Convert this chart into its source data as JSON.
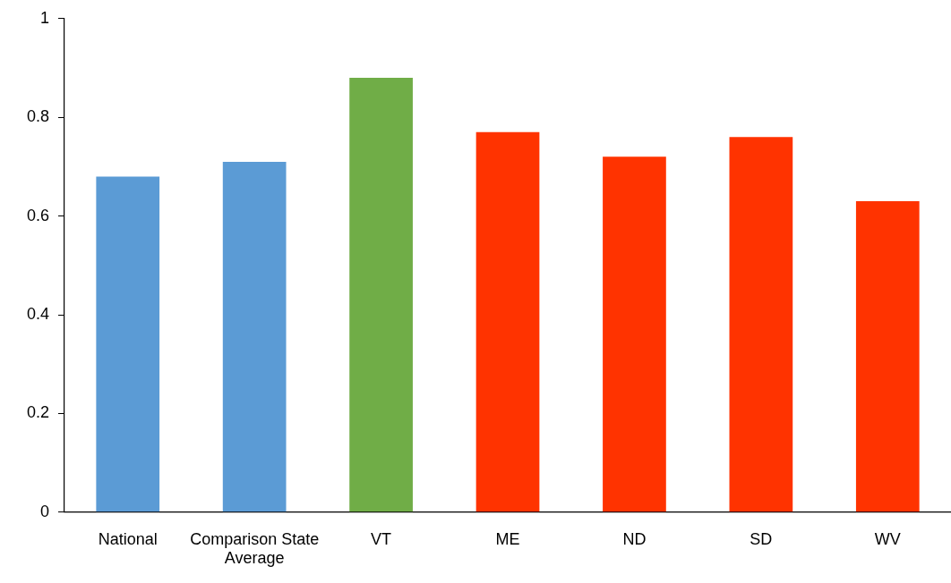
{
  "chart_data": {
    "type": "bar",
    "categories": [
      "National",
      "Comparison State Average",
      "VT",
      "ME",
      "ND",
      "SD",
      "WV"
    ],
    "values": [
      0.68,
      0.71,
      0.88,
      0.77,
      0.72,
      0.76,
      0.63
    ],
    "colors": [
      "#5b9bd5",
      "#5b9bd5",
      "#70ad47",
      "#ff3300",
      "#ff3300",
      "#ff3300",
      "#ff3300"
    ],
    "ylim": [
      0,
      1
    ],
    "yticks": [
      0,
      0.2,
      0.4,
      0.6,
      0.8,
      1
    ]
  }
}
